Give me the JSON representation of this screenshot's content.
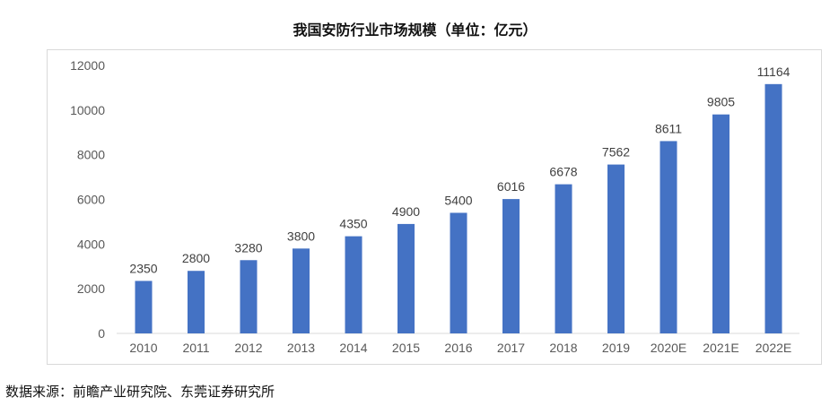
{
  "chart_data": {
    "type": "bar",
    "title": "我国安防行业市场规模（单位：亿元）",
    "categories": [
      "2010",
      "2011",
      "2012",
      "2013",
      "2014",
      "2015",
      "2016",
      "2017",
      "2018",
      "2019",
      "2020E",
      "2021E",
      "2022E"
    ],
    "values": [
      2350,
      2800,
      3280,
      3800,
      4350,
      4900,
      5400,
      6016,
      6678,
      7562,
      8611,
      9805,
      11164
    ],
    "yticks": [
      "0",
      "2000",
      "4000",
      "6000",
      "8000",
      "10000",
      "12000"
    ],
    "ylim": [
      0,
      12000
    ],
    "xlabel": "",
    "ylabel": "",
    "bar_color": "#4472c4",
    "grid": false,
    "legend": "none"
  },
  "source": "数据来源：前瞻产业研究院、东莞证券研究所"
}
